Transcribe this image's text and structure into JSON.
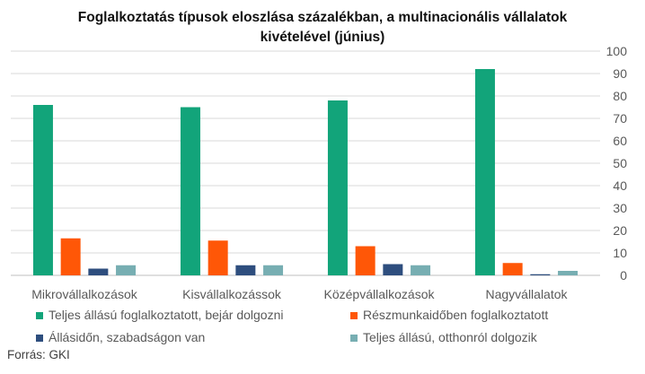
{
  "chart_data": {
    "type": "bar",
    "title_lines": [
      "Foglalkoztatás típusok eloszlása százalékban, a multinacionális vállalatok",
      "kivételével (június)"
    ],
    "categories": [
      "Mikrovállalkozások",
      "Kisvállalkozássok",
      "Középvállalkozások",
      "Nagyvállalatok"
    ],
    "series": [
      {
        "name": "Teljes állású foglalkoztatott, bejár dolgozni",
        "color": "#12A47A",
        "values": [
          76,
          75,
          78,
          92
        ]
      },
      {
        "name": "Részmunkaidőben foglalkoztatott",
        "color": "#FF5707",
        "values": [
          16.5,
          15.5,
          13,
          5.5
        ]
      },
      {
        "name": "Állásidőn, szabadságon van",
        "color": "#2E4E7E",
        "values": [
          3,
          4.5,
          5,
          0.5
        ]
      },
      {
        "name": "Teljes állású, otthonról dolgozik",
        "color": "#77AEB2",
        "values": [
          4.5,
          4.5,
          4.5,
          2
        ]
      }
    ],
    "y_axis": {
      "position": "right",
      "ylim": [
        0,
        100
      ],
      "ticks": [
        "0",
        "10",
        "20",
        "30",
        "40",
        "50",
        "60",
        "70",
        "80",
        "90",
        "100"
      ]
    },
    "grid": "horizontal",
    "legend": "bottom",
    "source": "Forrás: GKI"
  }
}
